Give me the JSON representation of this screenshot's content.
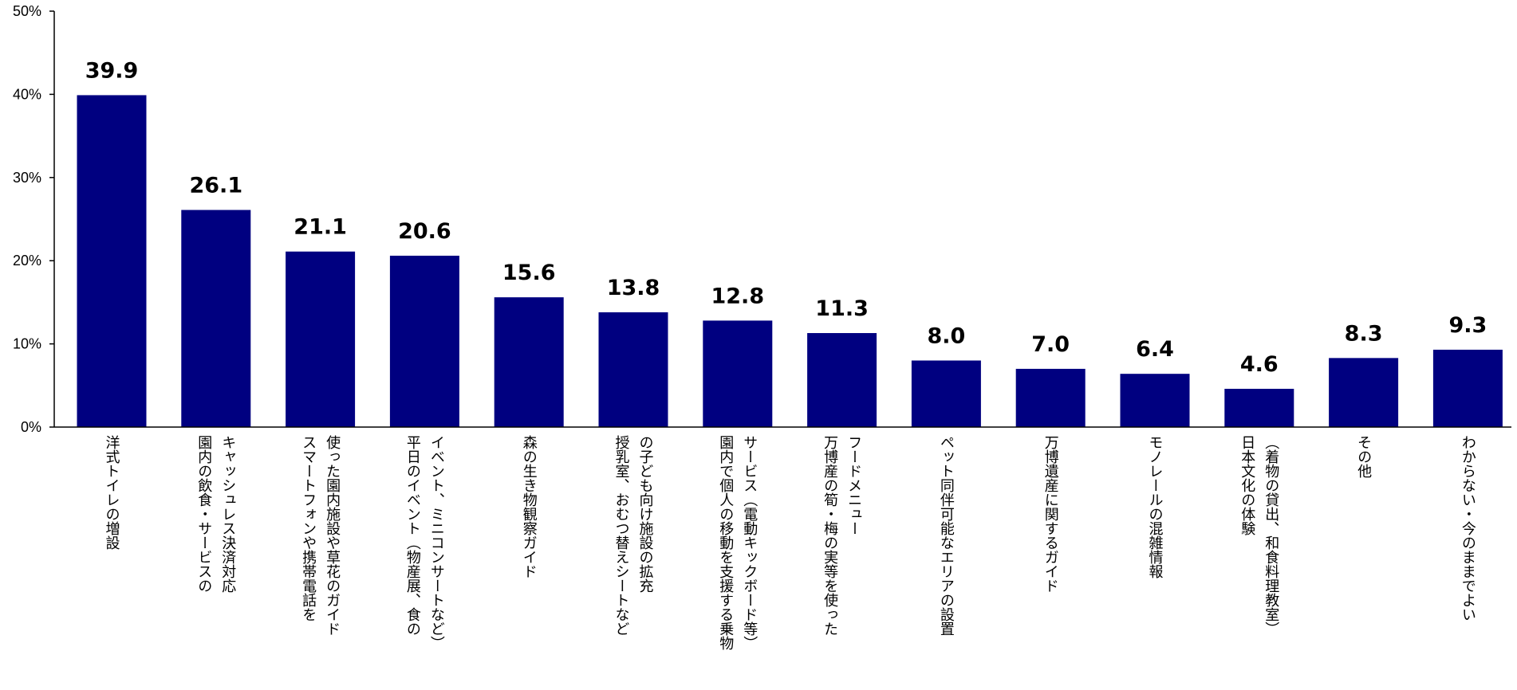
{
  "chart_data": {
    "type": "bar",
    "ylim": [
      0,
      50
    ],
    "y_ticks": [
      "0%",
      "10%",
      "20%",
      "30%",
      "40%",
      "50%"
    ],
    "y_tick_values": [
      0,
      10,
      20,
      30,
      40,
      50
    ],
    "bar_color": "#000080",
    "grid": false,
    "legend": "none",
    "categories": [
      [
        "洋式トイレの増設"
      ],
      [
        "キャッシュレス決済対応",
        "園内の飲食・サービスの"
      ],
      [
        "使った園内施設や草花のガイド",
        "スマートフォンや携帯電話を"
      ],
      [
        "イベント、ミニコンサートなど）",
        "平日のイベント（物産展、食の"
      ],
      [
        "森の生き物観察ガイド"
      ],
      [
        "の子ども向け施設の拡充",
        "授乳室、おむつ替えシートなど"
      ],
      [
        "サービス（電動キックボード等）",
        "園内で個人の移動を支援する乗物"
      ],
      [
        "フードメニュー",
        "万博産の筍・梅の実等を使った"
      ],
      [
        "ペット同伴可能なエリアの設置"
      ],
      [
        "万博遺産に関するガイド"
      ],
      [
        "モノレールの混雑情報"
      ],
      [
        "（着物の貸出、和食料理教室）",
        "日本文化の体験"
      ],
      [
        "その他"
      ],
      [
        "わからない・今のままでよい"
      ]
    ],
    "values": [
      39.9,
      26.1,
      21.1,
      20.6,
      15.6,
      13.8,
      12.8,
      11.3,
      8.0,
      7.0,
      6.4,
      4.6,
      8.3,
      9.3
    ],
    "value_labels": [
      "39.9",
      "26.1",
      "21.1",
      "20.6",
      "15.6",
      "13.8",
      "12.8",
      "11.3",
      "8.0",
      "7.0",
      "6.4",
      "4.6",
      "8.3",
      "9.3"
    ]
  }
}
